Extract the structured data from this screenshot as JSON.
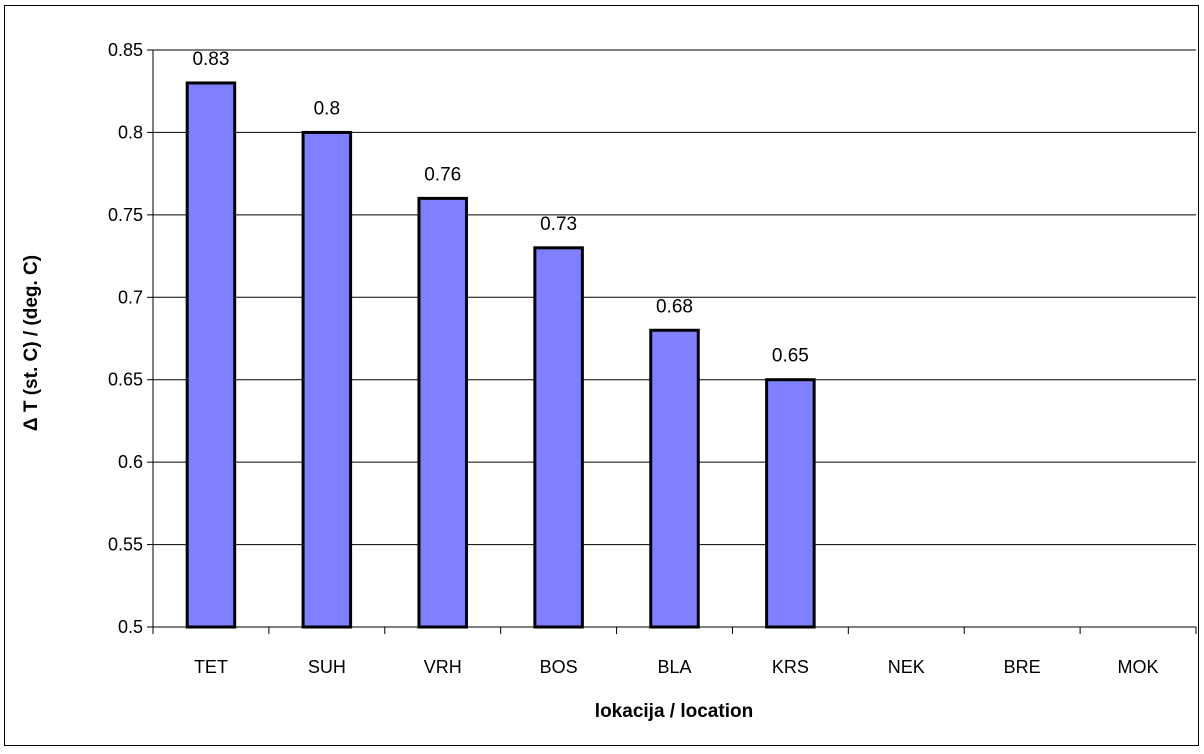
{
  "chart_data": {
    "type": "bar",
    "title": "",
    "xlabel": "lokacija / location",
    "ylabel": "Δ T (st. C) / (deg. C)",
    "categories": [
      "TET",
      "SUH",
      "VRH",
      "BOS",
      "BLA",
      "KRS",
      "NEK",
      "BRE",
      "MOK"
    ],
    "values": [
      0.83,
      0.8,
      0.76,
      0.73,
      0.68,
      0.65,
      null,
      null,
      null
    ],
    "data_labels": [
      "0.83",
      "0.8",
      "0.76",
      "0.73",
      "0.68",
      "0.65",
      "",
      "",
      ""
    ],
    "ylim": [
      0.5,
      0.85
    ],
    "yticks": [
      0.5,
      0.55,
      0.6,
      0.65,
      0.7,
      0.75,
      0.8,
      0.85
    ],
    "ytick_labels": [
      "0.5",
      "0.55",
      "0.6",
      "0.65",
      "0.7",
      "0.75",
      "0.8",
      "0.85"
    ],
    "grid": true,
    "legend": "none",
    "colors": {
      "bar_fill": "#8080ff",
      "bar_stroke": "#000000",
      "grid": "#000000"
    }
  }
}
